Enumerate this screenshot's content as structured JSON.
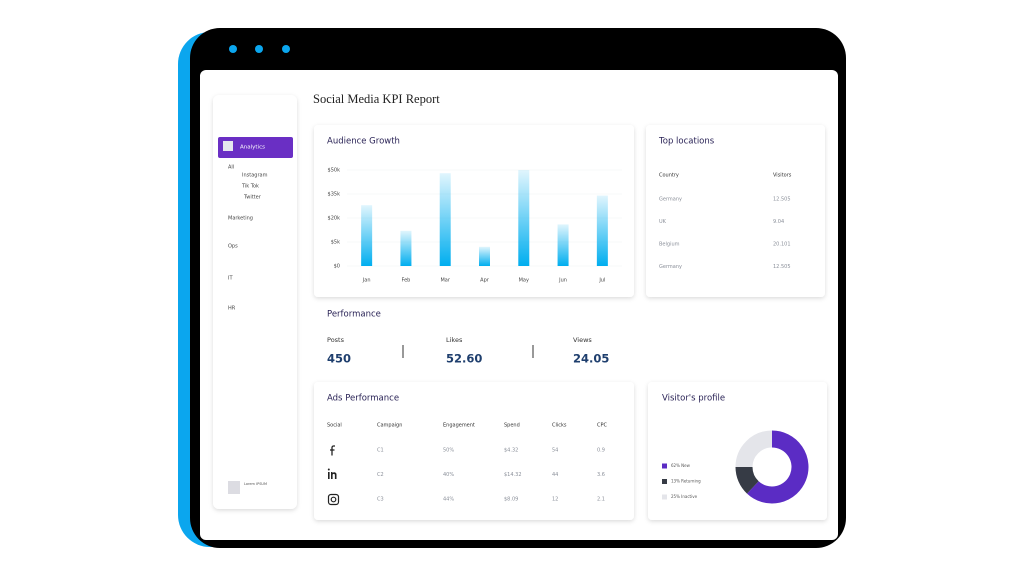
{
  "header": {
    "title": "Social Media KPI Report"
  },
  "sidebar": {
    "items": [
      "Analytics",
      "All",
      "Instagram",
      "Tik Tok",
      "Twitter",
      "Marketing",
      "Ops",
      "IT",
      "HR"
    ],
    "footer": "Lorem IPSUM"
  },
  "chart_data": [
    {
      "type": "bar",
      "title": "Audience Growth",
      "categories": [
        "Jan",
        "Feb",
        "Mar",
        "Apr",
        "May",
        "Jun",
        "Jul"
      ],
      "values": [
        28000,
        12000,
        48000,
        4000,
        50000,
        16000,
        34000
      ],
      "color": "#00aeef",
      "ylim": [
        0,
        50000
      ],
      "yticks": [
        {
          "value": 0,
          "label": "$0"
        },
        {
          "value": 5000,
          "label": "$5k"
        },
        {
          "value": 20000,
          "label": "$20k"
        },
        {
          "value": 35000,
          "label": "$35k"
        },
        {
          "value": 50000,
          "label": "$50k"
        }
      ],
      "grid": true
    },
    {
      "type": "donut",
      "title": "Visitor's profile",
      "categories": [
        "New",
        "Returning",
        "Inactive"
      ],
      "values": [
        62,
        13,
        25
      ],
      "value_labels": [
        "62%",
        "13%",
        "25%"
      ],
      "colors": [
        "#5b2cc4",
        "#363b45",
        "#e4e5ea"
      ]
    }
  ],
  "top_locations": {
    "title": "Top locations",
    "columns": [
      "Country",
      "Visitors"
    ],
    "rows": [
      [
        "Germany",
        "12.505"
      ],
      [
        "UK",
        "9.04"
      ],
      [
        "Belgium",
        "20.101"
      ],
      [
        "Germany",
        "12.505"
      ]
    ]
  },
  "performance": {
    "title": "Performance",
    "metrics": [
      {
        "label": "Posts",
        "value": "450"
      },
      {
        "label": "Likes",
        "value": "52.60"
      },
      {
        "label": "Views",
        "value": "24.05"
      }
    ]
  },
  "ads": {
    "title": "Ads Performance",
    "columns": [
      "Social",
      "Campaign",
      "Engagement",
      "Spend",
      "Clicks",
      "CPC"
    ],
    "rows": [
      [
        "C1",
        "50%",
        "$4.32",
        "54",
        "0.9"
      ],
      [
        "C2",
        "40%",
        "$14.32",
        "44",
        "3.6"
      ],
      [
        "C3",
        "44%",
        "$8.09",
        "12",
        "2.1"
      ]
    ]
  }
}
